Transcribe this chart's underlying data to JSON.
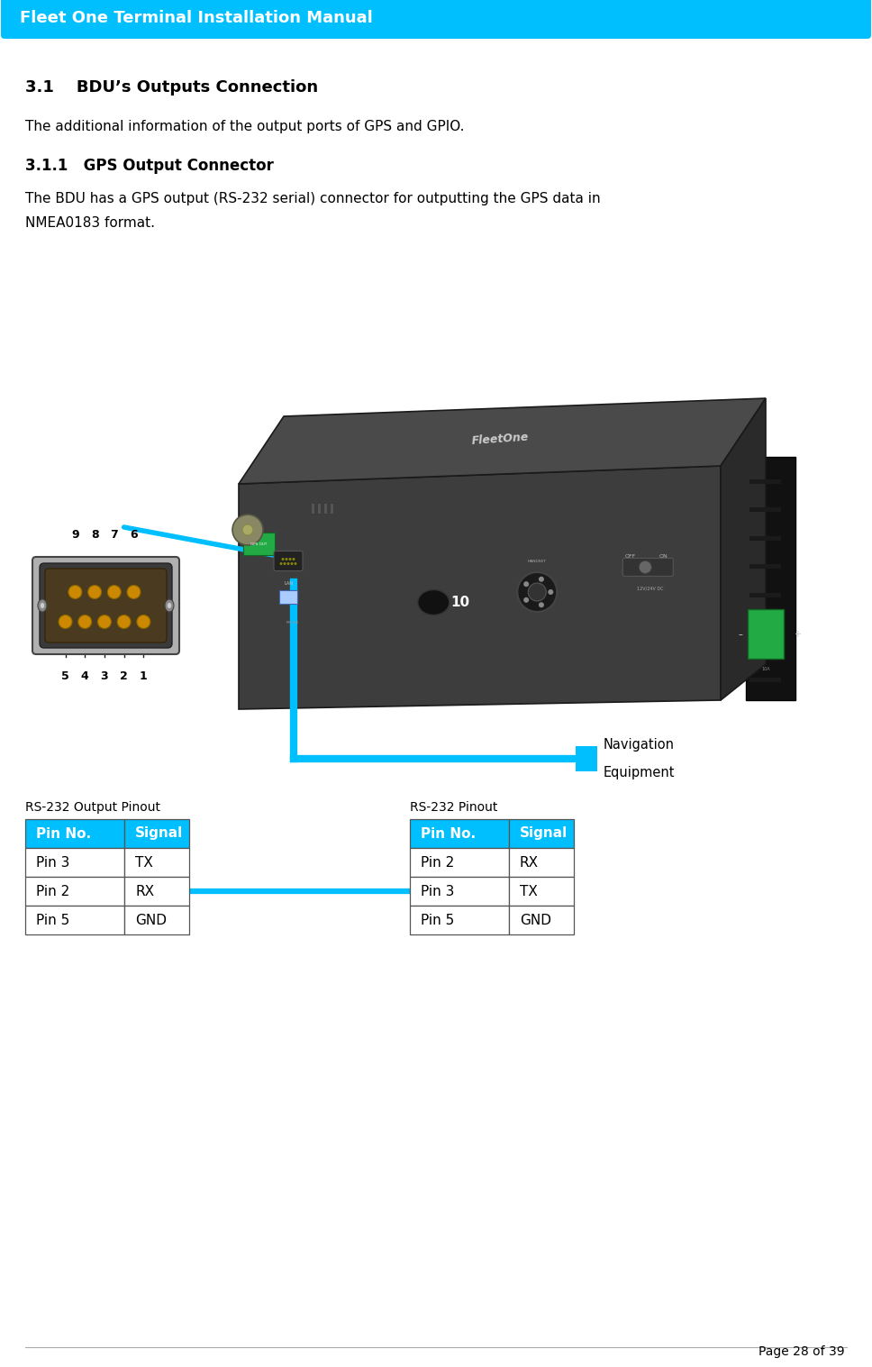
{
  "page_width": 9.68,
  "page_height": 15.17,
  "bg_color": "#ffffff",
  "header_bg": "#00bfff",
  "header_text": "Fleet One Terminal Installation Manual",
  "header_text_color": "#ffffff",
  "header_font_size": 13,
  "section_title": "3.1    BDU’s Outputs Connection",
  "section_title_font_size": 13,
  "body_text1": "The additional information of the output ports of GPS and GPIO.",
  "body_text1_font_size": 11,
  "subsection_title": "3.1.1   GPS Output Connector",
  "subsection_title_font_size": 12,
  "body_text2_line1": "The BDU has a GPS output (RS-232 serial) connector for outputting the GPS data in",
  "body_text2_line2": "NMEA0183 format.",
  "body_text2_font_size": 11,
  "table1_title": "RS-232 Output Pinout",
  "table1_header": [
    "Pin No.",
    "Signal"
  ],
  "table1_rows": [
    [
      "Pin 3",
      "TX"
    ],
    [
      "Pin 2",
      "RX"
    ],
    [
      "Pin 5",
      "GND"
    ]
  ],
  "table2_title": "RS-232 Pinout",
  "table2_header": [
    "Pin No.",
    "Signal"
  ],
  "table2_rows": [
    [
      "Pin 2",
      "RX"
    ],
    [
      "Pin 3",
      "TX"
    ],
    [
      "Pin 5",
      "GND"
    ]
  ],
  "table_header_bg": "#00bfff",
  "table_header_text_color": "#ffffff",
  "table_row_bg": "#ffffff",
  "table_border_color": "#555555",
  "nav_label_line1": "Navigation",
  "nav_label_line2": "Equipment",
  "page_footer": "Page 28 of 39",
  "connector_line_color": "#00bfff",
  "pin_number_labels_top": [
    "9",
    "8",
    "7",
    "6"
  ],
  "pin_number_labels_bottom": [
    "5",
    "4",
    "3",
    "2",
    "1"
  ]
}
